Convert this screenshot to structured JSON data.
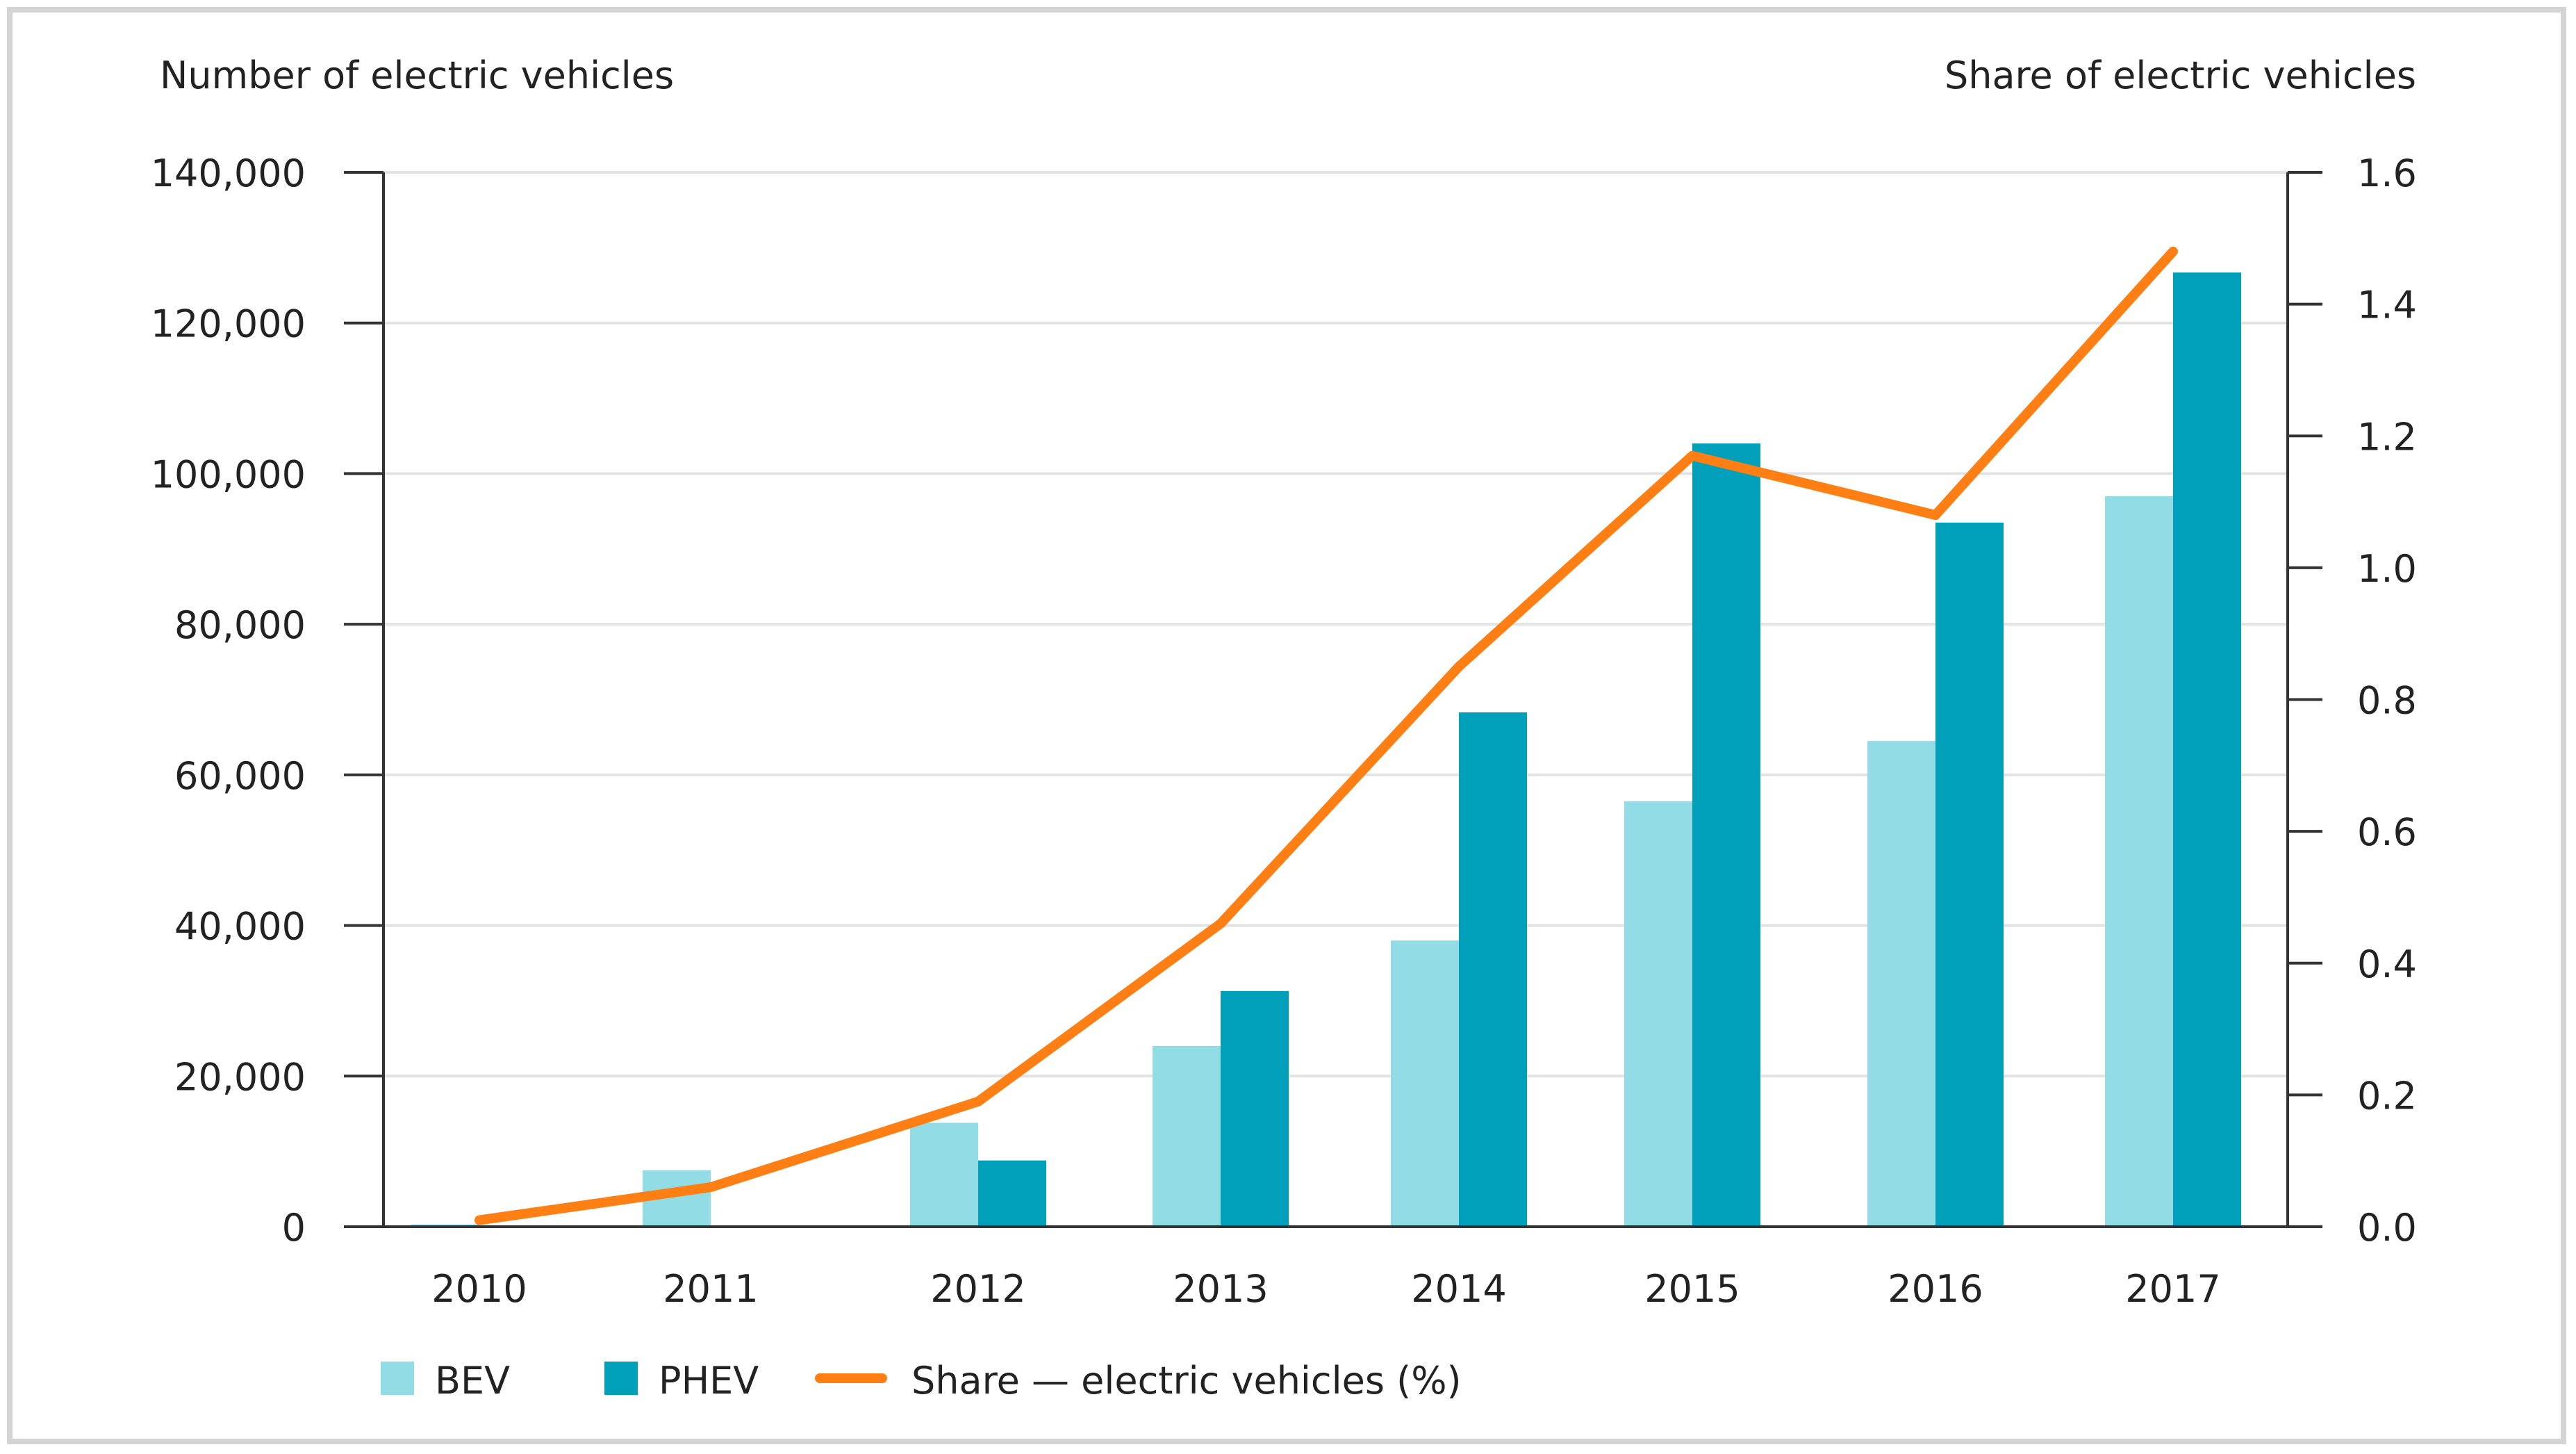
{
  "chart_data": {
    "type": "bar",
    "categories": [
      "2010",
      "2011",
      "2012",
      "2013",
      "2014",
      "2015",
      "2016",
      "2017"
    ],
    "series": [
      {
        "name": "BEV",
        "kind": "bar",
        "axis": "left",
        "color": "#92dce5",
        "values": [
          300,
          7500,
          13800,
          24000,
          38000,
          56500,
          64500,
          97000
        ]
      },
      {
        "name": "PHEV",
        "kind": "bar",
        "axis": "left",
        "color": "#009fba",
        "values": [
          0,
          0,
          8800,
          31300,
          68300,
          104000,
          93500,
          126700
        ]
      },
      {
        "name": "Share",
        "kind": "line",
        "axis": "right",
        "color": "#ff7f14",
        "values": [
          0.01,
          0.06,
          0.19,
          0.46,
          0.85,
          1.17,
          1.08,
          1.48
        ]
      }
    ],
    "y_left": {
      "label": "Number of electric vehicles",
      "range": [
        0,
        140000
      ],
      "ticks": [
        "0",
        "20,000",
        "40,000",
        "60,000",
        "80,000",
        "100,000",
        "120,000",
        "140,000"
      ]
    },
    "y_right": {
      "label": "Share of electric vehicles",
      "range": [
        0,
        1.6
      ],
      "ticks": [
        "0.0",
        "0.2",
        "0.4",
        "0.6",
        "0.8",
        "1.0",
        "1.2",
        "1.4",
        "1.6"
      ]
    },
    "grid": true,
    "legend": {
      "position": "bottom-left",
      "items": [
        {
          "label": "BEV",
          "color": "#92dce5",
          "kind": "swatch"
        },
        {
          "label": "PHEV",
          "color": "#009fba",
          "kind": "swatch"
        },
        {
          "label": "Share — electric vehicles (%)",
          "color": "#ff7f14",
          "kind": "line"
        }
      ]
    }
  }
}
